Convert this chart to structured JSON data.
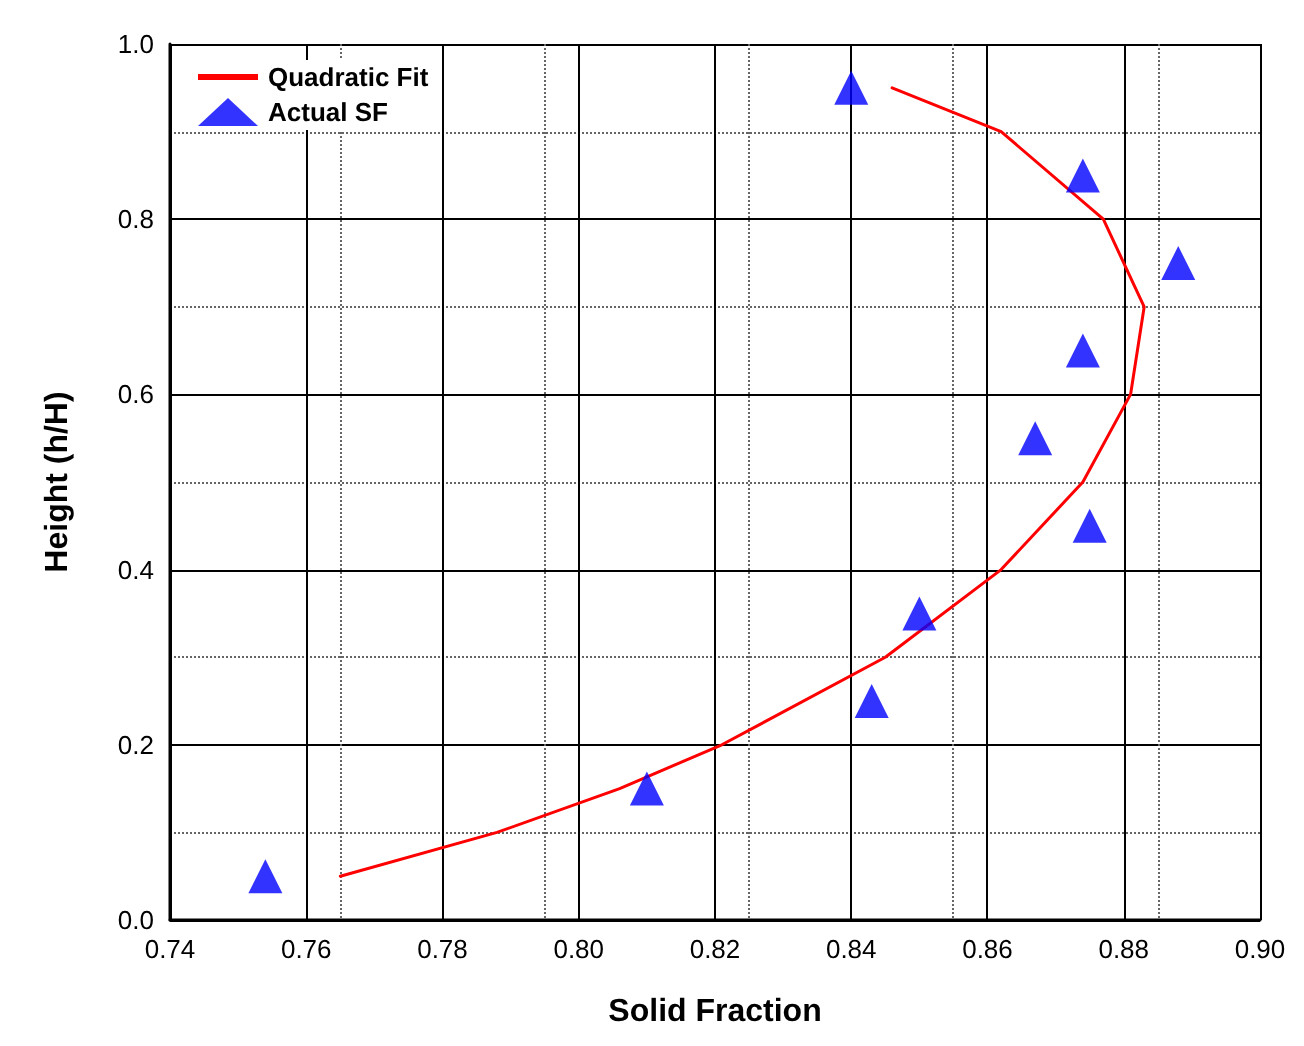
{
  "chart_data": {
    "type": "scatter",
    "xlabel": "Solid Fraction",
    "ylabel": "Height (h/H)",
    "xlim": [
      0.74,
      0.9
    ],
    "xticks": [
      0.74,
      0.76,
      0.78,
      {
        "value": 0.8,
        "label": "0.80"
      },
      0.82,
      0.84,
      0.86,
      0.88,
      {
        "value": 0.9,
        "label": "0.90"
      }
    ],
    "ylim": [
      0,
      1
    ],
    "yticks": [
      {
        "value": 0,
        "label": "0.0"
      },
      0.2,
      0.4,
      0.6,
      0.8,
      {
        "value": 1,
        "label": "1.0"
      }
    ],
    "grid": true,
    "legend": "top left",
    "series": [
      {
        "name": "Quadratic Fit",
        "type": "line",
        "color": "#ff0000",
        "marker": "none",
        "line_style": "solid",
        "x": [
          0.765,
          0.788,
          0.806,
          0.821,
          0.845,
          0.862,
          0.874,
          0.881,
          0.883,
          0.877,
          0.862,
          0.846
        ],
        "values": [
          0.05,
          0.1,
          0.15,
          0.2,
          0.3,
          0.4,
          0.5,
          0.6,
          0.7,
          0.8,
          0.9,
          0.95
        ]
      },
      {
        "name": "Actual SF",
        "color": "#0000ff",
        "marker": "triangle",
        "x": [
          0.754,
          0.81,
          0.843,
          0.85,
          0.867,
          0.875,
          0.874,
          0.874,
          0.888,
          0.84
        ],
        "values": [
          0.05,
          0.15,
          0.25,
          0.35,
          0.55,
          0.45,
          0.65,
          0.85,
          0.75,
          0.95
        ]
      }
    ]
  }
}
